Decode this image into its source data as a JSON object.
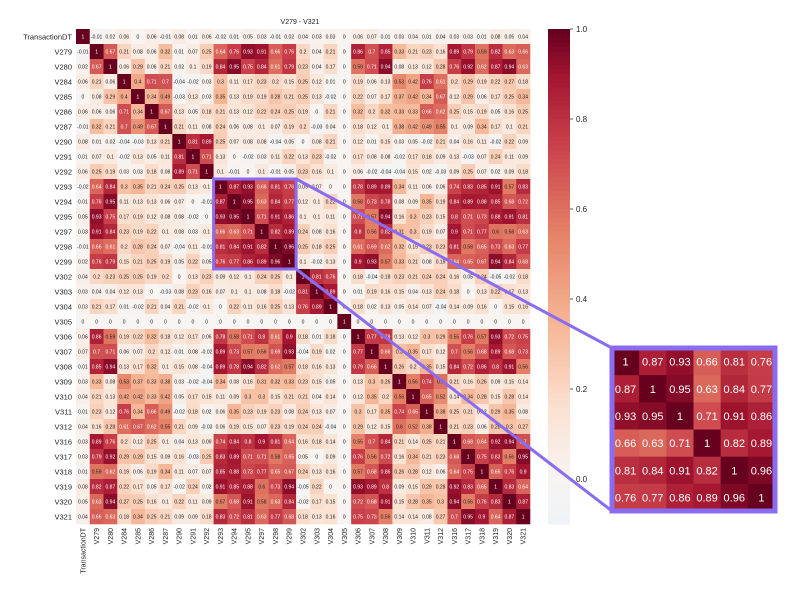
{
  "chart_data": {
    "type": "heatmap",
    "title": "V279 - V321",
    "row_labels": [
      "TransactionDT",
      "V279",
      "V280",
      "V284",
      "V285",
      "V286",
      "V287",
      "V290",
      "V291",
      "V292",
      "V293",
      "V294",
      "V295",
      "V297",
      "V298",
      "V299",
      "V302",
      "V303",
      "V304",
      "V305",
      "V306",
      "V307",
      "V308",
      "V309",
      "V310",
      "V311",
      "V312",
      "V316",
      "V317",
      "V318",
      "V319",
      "V320",
      "V321"
    ],
    "col_labels": [
      "TransactionDT",
      "V279",
      "V280",
      "V284",
      "V285",
      "V286",
      "V287",
      "V290",
      "V291",
      "V292",
      "V293",
      "V294",
      "V295",
      "V297",
      "V298",
      "V299",
      "V302",
      "V303",
      "V304",
      "V305",
      "V306",
      "V307",
      "V308",
      "V309",
      "V310",
      "V311",
      "V312",
      "V316",
      "V317",
      "V318",
      "V319",
      "V320",
      "V321"
    ],
    "colorbar": {
      "min": -0.1,
      "max": 1.0,
      "ticks": [
        "1.0",
        "0.8",
        "0.6",
        "0.4",
        "0.2",
        "0.0"
      ],
      "low_color": "#eef3f7",
      "high_color": "#67001f"
    },
    "highlight": {
      "rows": [
        10,
        11,
        12,
        13,
        14,
        15
      ],
      "cols": [
        10,
        11,
        12,
        13,
        14,
        15
      ],
      "values": [
        [
          "1",
          "0.87",
          "0.93",
          "0.66",
          "0.81",
          "0.76"
        ],
        [
          "0.87",
          "1",
          "0.95",
          "0.63",
          "0.84",
          "0.77"
        ],
        [
          "0.93",
          "0.95",
          "1",
          "0.71",
          "0.91",
          "0.86"
        ],
        [
          "0.66",
          "0.63",
          "0.71",
          "1",
          "0.82",
          "0.89"
        ],
        [
          "0.81",
          "0.84",
          "0.91",
          "0.82",
          "1",
          "0.96"
        ],
        [
          "0.76",
          "0.77",
          "0.86",
          "0.89",
          "0.96",
          "1"
        ]
      ],
      "border_color": "#8a6cf0"
    }
  }
}
